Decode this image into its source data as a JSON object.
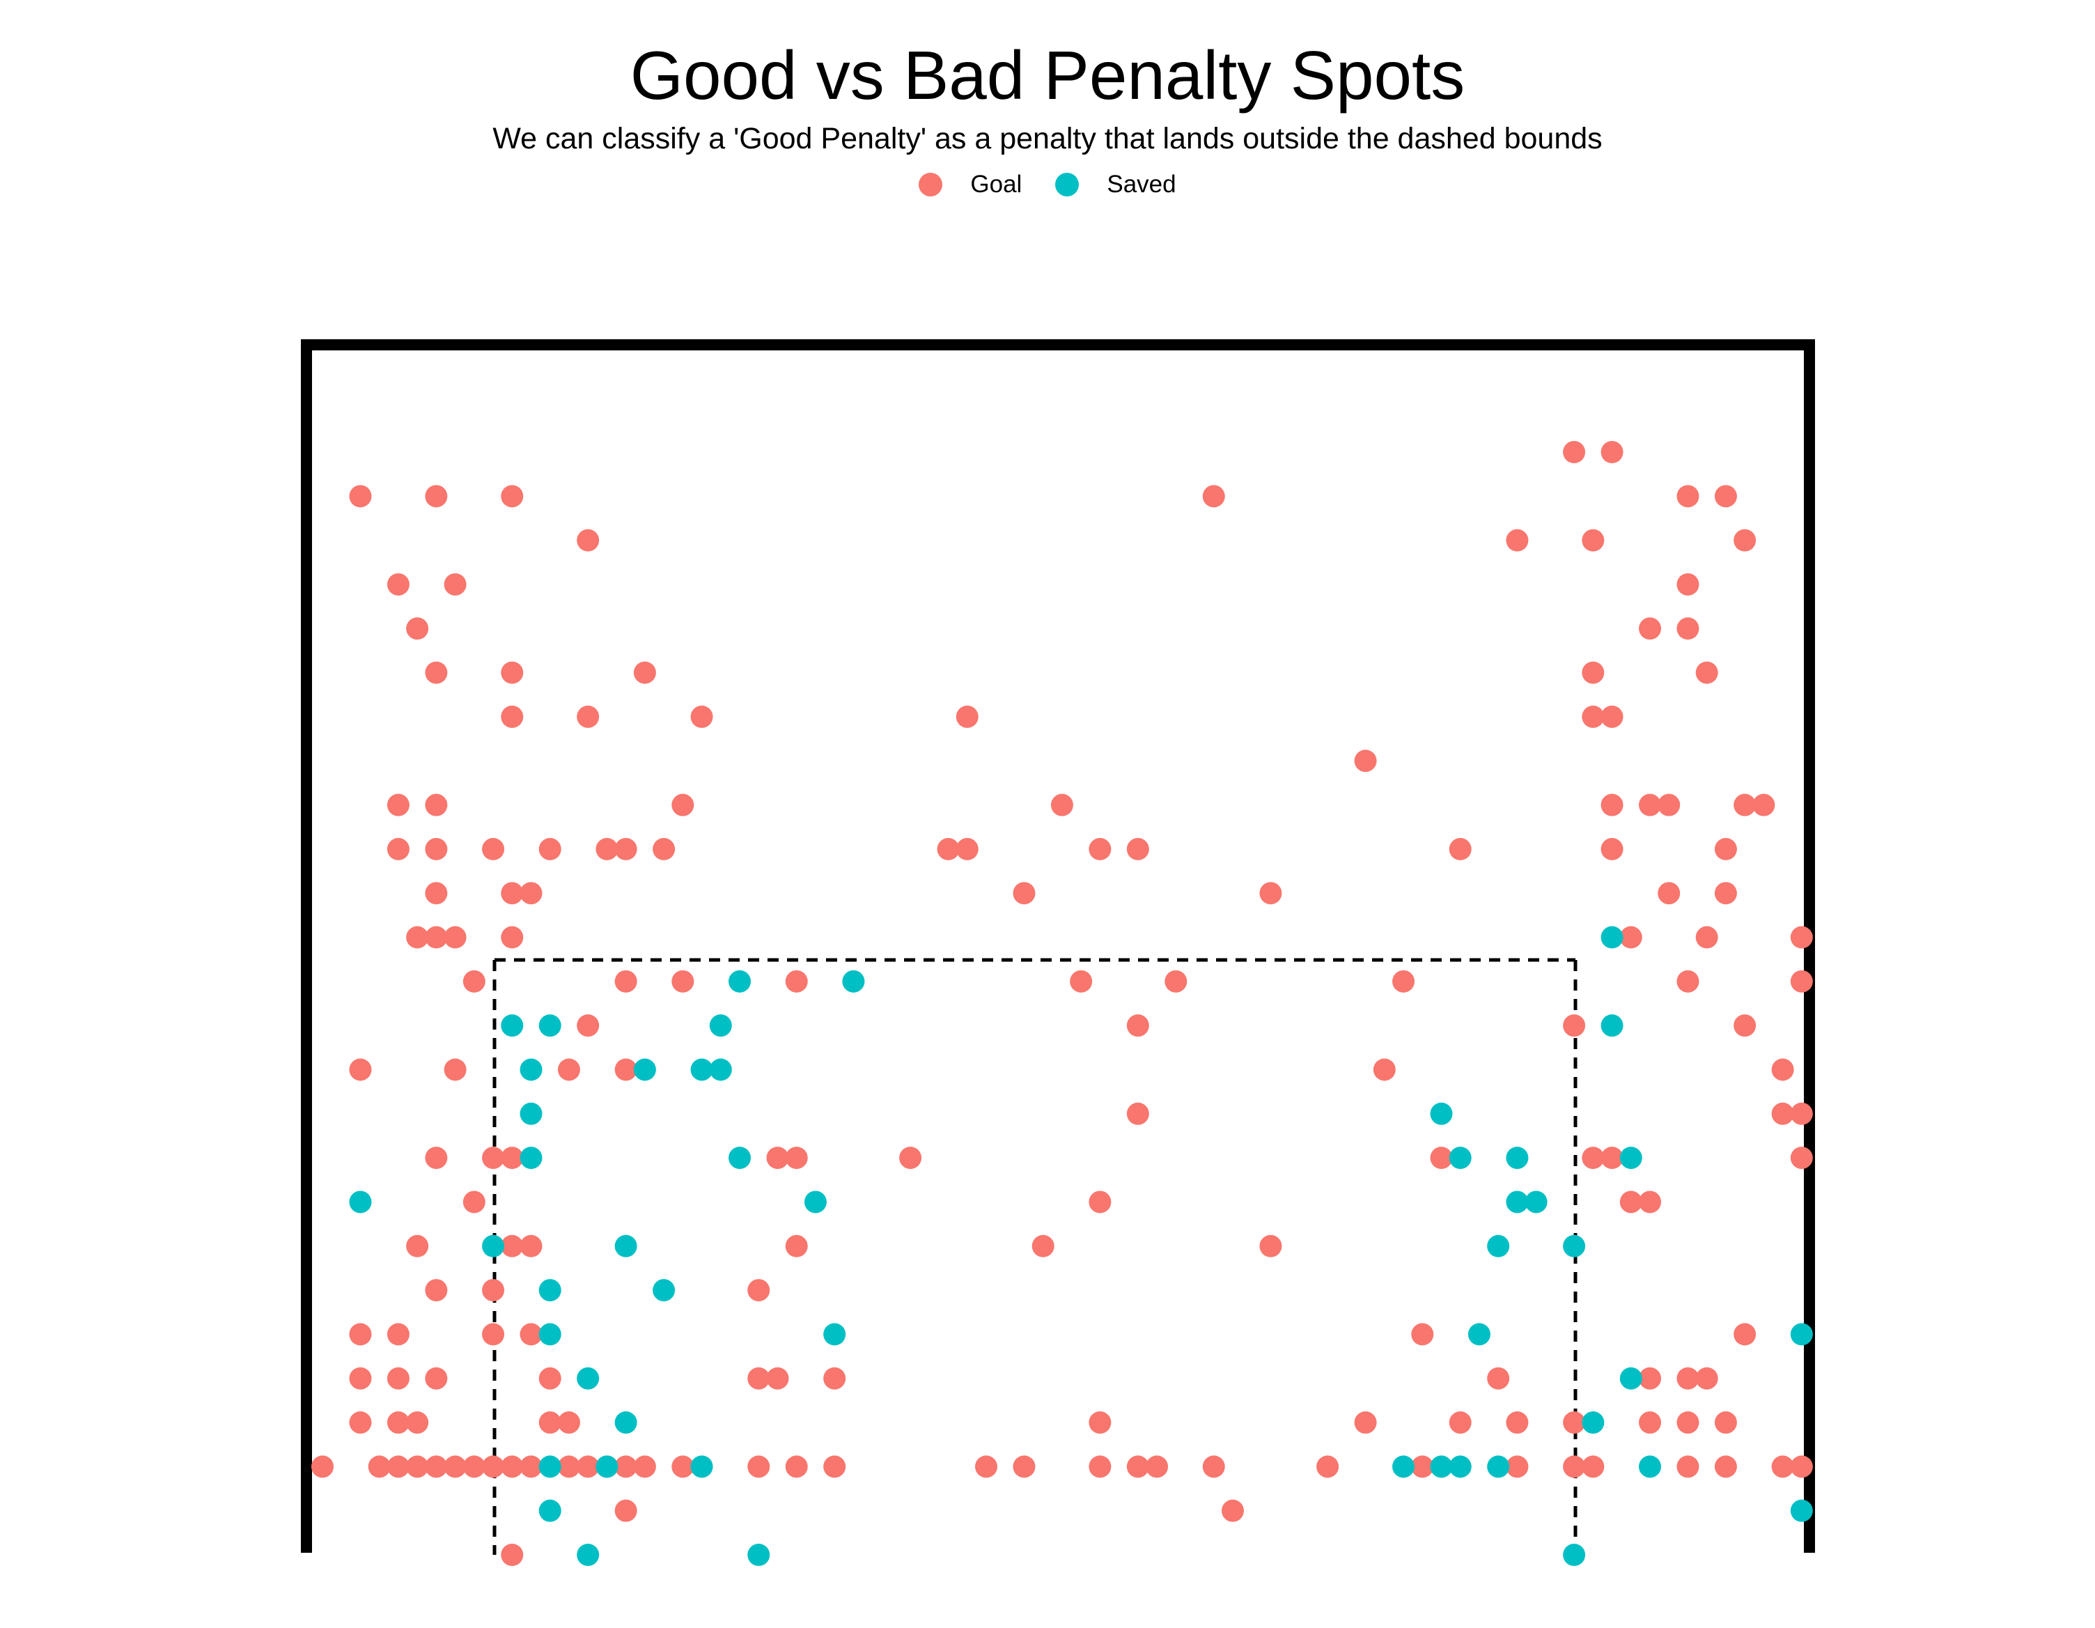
{
  "chart_data": {
    "type": "scatter",
    "title": "Good vs Bad Penalty Spots",
    "subtitle": "We can classify a 'Good Penalty' as a penalty that lands outside the dashed bounds",
    "xlabel": "",
    "ylabel": "",
    "xlim": [
      0,
      80
    ],
    "ylim": [
      0,
      28
    ],
    "grid": false,
    "legend_position": "top",
    "goal_frame": {
      "left_post": 0,
      "right_post": 80,
      "crossbar": 28
    },
    "dashed_bounds": {
      "x": [
        10,
        67.5
      ],
      "y": [
        0,
        13.4
      ]
    },
    "series": [
      {
        "name": "Goal",
        "color": "#F8766D",
        "points": [
          [
            66,
            25
          ],
          [
            68,
            25
          ],
          [
            2,
            24
          ],
          [
            6,
            24
          ],
          [
            10,
            24
          ],
          [
            47,
            24
          ],
          [
            72,
            24
          ],
          [
            74,
            24
          ],
          [
            14,
            23
          ],
          [
            63,
            23
          ],
          [
            67,
            23
          ],
          [
            75,
            23
          ],
          [
            4,
            22
          ],
          [
            7,
            22
          ],
          [
            72,
            22
          ],
          [
            5,
            21
          ],
          [
            70,
            21
          ],
          [
            72,
            21
          ],
          [
            6,
            20
          ],
          [
            10,
            20
          ],
          [
            17,
            20
          ],
          [
            67,
            20
          ],
          [
            73,
            20
          ],
          [
            10,
            19
          ],
          [
            14,
            19
          ],
          [
            20,
            19
          ],
          [
            34,
            19
          ],
          [
            67,
            19
          ],
          [
            68,
            19
          ],
          [
            55,
            18
          ],
          [
            4,
            17
          ],
          [
            6,
            17
          ],
          [
            19,
            17
          ],
          [
            39,
            17
          ],
          [
            68,
            17
          ],
          [
            70,
            17
          ],
          [
            71,
            17
          ],
          [
            75,
            17
          ],
          [
            76,
            17
          ],
          [
            4,
            16
          ],
          [
            6,
            16
          ],
          [
            9,
            16
          ],
          [
            12,
            16
          ],
          [
            15,
            16
          ],
          [
            16,
            16
          ],
          [
            18,
            16
          ],
          [
            33,
            16
          ],
          [
            34,
            16
          ],
          [
            41,
            16
          ],
          [
            43,
            16
          ],
          [
            60,
            16
          ],
          [
            68,
            16
          ],
          [
            74,
            16
          ],
          [
            6,
            15
          ],
          [
            10,
            15
          ],
          [
            11,
            15
          ],
          [
            37,
            15
          ],
          [
            50,
            15
          ],
          [
            71,
            15
          ],
          [
            74,
            15
          ],
          [
            5,
            14
          ],
          [
            6,
            14
          ],
          [
            7,
            14
          ],
          [
            10,
            14
          ],
          [
            69,
            14
          ],
          [
            73,
            14
          ],
          [
            78,
            14
          ],
          [
            8,
            13
          ],
          [
            16,
            13
          ],
          [
            19,
            13
          ],
          [
            25,
            13
          ],
          [
            40,
            13
          ],
          [
            45,
            13
          ],
          [
            57,
            13
          ],
          [
            72,
            13
          ],
          [
            78,
            13
          ],
          [
            14,
            12
          ],
          [
            43,
            12
          ],
          [
            66,
            12
          ],
          [
            75,
            12
          ],
          [
            2,
            11
          ],
          [
            7,
            11
          ],
          [
            13,
            11
          ],
          [
            16,
            11
          ],
          [
            56,
            11
          ],
          [
            77,
            11
          ],
          [
            43,
            10
          ],
          [
            77,
            10
          ],
          [
            78,
            10
          ],
          [
            6,
            9
          ],
          [
            9,
            9
          ],
          [
            10,
            9
          ],
          [
            24,
            9
          ],
          [
            25,
            9
          ],
          [
            31,
            9
          ],
          [
            59,
            9
          ],
          [
            67,
            9
          ],
          [
            68,
            9
          ],
          [
            78,
            9
          ],
          [
            8,
            8
          ],
          [
            41,
            8
          ],
          [
            69,
            8
          ],
          [
            70,
            8
          ],
          [
            5,
            7
          ],
          [
            10,
            7
          ],
          [
            11,
            7
          ],
          [
            25,
            7
          ],
          [
            38,
            7
          ],
          [
            50,
            7
          ],
          [
            6,
            6
          ],
          [
            9,
            6
          ],
          [
            23,
            6
          ],
          [
            2,
            5
          ],
          [
            4,
            5
          ],
          [
            9,
            5
          ],
          [
            11,
            5
          ],
          [
            58,
            5
          ],
          [
            75,
            5
          ],
          [
            2,
            4
          ],
          [
            4,
            4
          ],
          [
            6,
            4
          ],
          [
            12,
            4
          ],
          [
            23,
            4
          ],
          [
            24,
            4
          ],
          [
            27,
            4
          ],
          [
            62,
            4
          ],
          [
            70,
            4
          ],
          [
            72,
            4
          ],
          [
            73,
            4
          ],
          [
            2,
            3
          ],
          [
            4,
            3
          ],
          [
            5,
            3
          ],
          [
            12,
            3
          ],
          [
            13,
            3
          ],
          [
            41,
            3
          ],
          [
            55,
            3
          ],
          [
            60,
            3
          ],
          [
            63,
            3
          ],
          [
            66,
            3
          ],
          [
            70,
            3
          ],
          [
            72,
            3
          ],
          [
            74,
            3
          ],
          [
            0,
            2
          ],
          [
            3,
            2
          ],
          [
            4,
            2
          ],
          [
            5,
            2
          ],
          [
            6,
            2
          ],
          [
            7,
            2
          ],
          [
            8,
            2
          ],
          [
            9,
            2
          ],
          [
            10,
            2
          ],
          [
            11,
            2
          ],
          [
            13,
            2
          ],
          [
            14,
            2
          ],
          [
            15,
            2
          ],
          [
            16,
            2
          ],
          [
            17,
            2
          ],
          [
            19,
            2
          ],
          [
            23,
            2
          ],
          [
            25,
            2
          ],
          [
            27,
            2
          ],
          [
            35,
            2
          ],
          [
            37,
            2
          ],
          [
            41,
            2
          ],
          [
            43,
            2
          ],
          [
            44,
            2
          ],
          [
            47,
            2
          ],
          [
            53,
            2
          ],
          [
            58,
            2
          ],
          [
            63,
            2
          ],
          [
            66,
            2
          ],
          [
            67,
            2
          ],
          [
            72,
            2
          ],
          [
            74,
            2
          ],
          [
            77,
            2
          ],
          [
            78,
            2
          ],
          [
            16,
            1
          ],
          [
            48,
            1
          ],
          [
            10,
            0
          ]
        ]
      },
      {
        "name": "Saved",
        "color": "#00BFC4",
        "points": [
          [
            68,
            14
          ],
          [
            22,
            13
          ],
          [
            28,
            13
          ],
          [
            10,
            12
          ],
          [
            12,
            12
          ],
          [
            21,
            12
          ],
          [
            68,
            12
          ],
          [
            11,
            11
          ],
          [
            17,
            11
          ],
          [
            20,
            11
          ],
          [
            21,
            11
          ],
          [
            11,
            10
          ],
          [
            59,
            10
          ],
          [
            11,
            9
          ],
          [
            22,
            9
          ],
          [
            60,
            9
          ],
          [
            63,
            9
          ],
          [
            69,
            9
          ],
          [
            2,
            8
          ],
          [
            26,
            8
          ],
          [
            63,
            8
          ],
          [
            64,
            8
          ],
          [
            9,
            7
          ],
          [
            16,
            7
          ],
          [
            62,
            7
          ],
          [
            66,
            7
          ],
          [
            12,
            6
          ],
          [
            18,
            6
          ],
          [
            12,
            5
          ],
          [
            27,
            5
          ],
          [
            61,
            5
          ],
          [
            78,
            5
          ],
          [
            14,
            4
          ],
          [
            69,
            4
          ],
          [
            16,
            3
          ],
          [
            67,
            3
          ],
          [
            12,
            2
          ],
          [
            15,
            2
          ],
          [
            20,
            2
          ],
          [
            57,
            2
          ],
          [
            59,
            2
          ],
          [
            60,
            2
          ],
          [
            62,
            2
          ],
          [
            70,
            2
          ],
          [
            12,
            1
          ],
          [
            78,
            1
          ],
          [
            14,
            0
          ],
          [
            23,
            0
          ],
          [
            66,
            0
          ]
        ]
      }
    ]
  }
}
